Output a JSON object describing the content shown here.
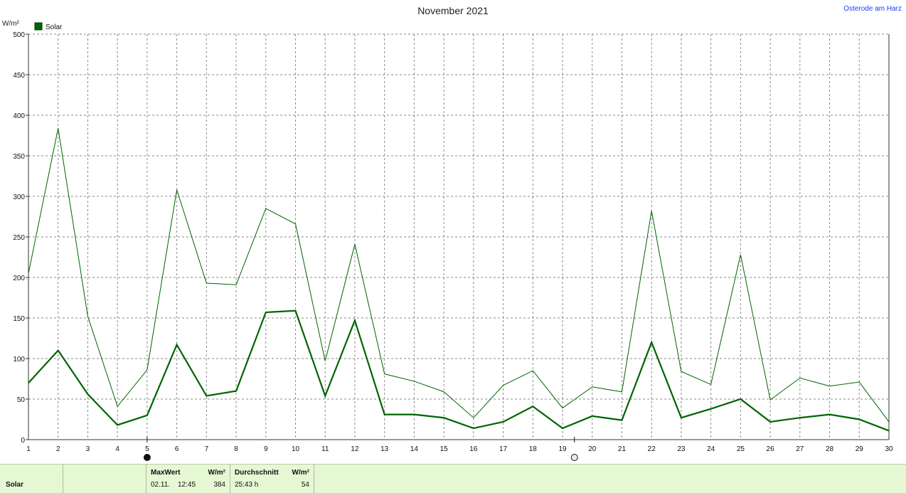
{
  "header": {
    "title": "November 2021",
    "station": "Osterode am Harz",
    "unit": "W/m²"
  },
  "legend": {
    "label": "Solar",
    "color": "#006400"
  },
  "chart_data": {
    "type": "line",
    "title": "November 2021",
    "ylabel": "W/m²",
    "xlim": [
      1,
      30
    ],
    "ylim": [
      0,
      500
    ],
    "yticks": [
      0,
      50,
      100,
      150,
      200,
      250,
      300,
      350,
      400,
      450,
      500
    ],
    "x": [
      1,
      2,
      3,
      4,
      5,
      6,
      7,
      8,
      9,
      10,
      11,
      12,
      13,
      14,
      15,
      16,
      17,
      18,
      19,
      20,
      21,
      22,
      23,
      24,
      25,
      26,
      27,
      28,
      29,
      30
    ],
    "grid": true,
    "legend_position": "top-left",
    "series": [
      {
        "name": "Solar",
        "role": "max",
        "color": "#006400",
        "values": [
          205,
          384,
          152,
          41,
          86,
          308,
          193,
          191,
          285,
          266,
          97,
          241,
          81,
          72,
          59,
          27,
          67,
          85,
          39,
          65,
          59,
          282,
          84,
          68,
          228,
          49,
          76,
          66,
          71,
          22
        ]
      },
      {
        "role": "average",
        "color": "#006400",
        "values": [
          70,
          110,
          56,
          18,
          30,
          117,
          54,
          60,
          157,
          159,
          54,
          147,
          31,
          31,
          27,
          14,
          22,
          41,
          14,
          29,
          24,
          120,
          27,
          38,
          50,
          22,
          27,
          31,
          25,
          11
        ]
      }
    ],
    "markers": [
      {
        "x": 5,
        "symbol": "full-moon"
      },
      {
        "x": 19.4,
        "symbol": "new-moon"
      }
    ]
  },
  "footer": {
    "label": "Solar",
    "max_header": "MaxWert",
    "max_unit": "W/m²",
    "max_date": "02.11.",
    "max_time": "12:45",
    "max_value": "384",
    "avg_header": "Durchschnitt",
    "avg_unit": "W/m²",
    "avg_duration": "25:43 h",
    "avg_value": "54"
  }
}
